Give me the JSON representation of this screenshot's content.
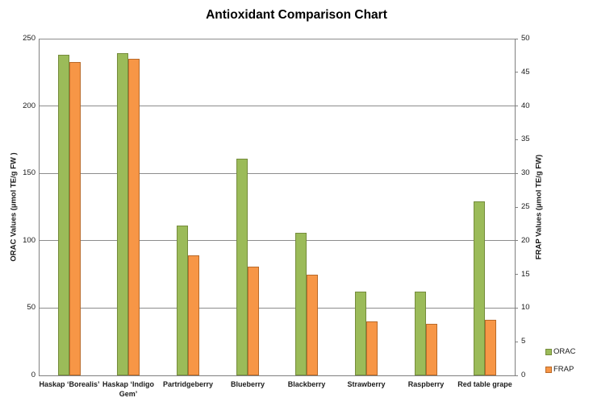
{
  "chart_data": {
    "type": "bar",
    "title": "Antioxidant Comparison Chart",
    "axes": {
      "left": {
        "label": "ORAC Values (µmol TE/g FW )",
        "min": 0,
        "max": 250,
        "tick_step": 50,
        "ticks": [
          250,
          200,
          150,
          100,
          50,
          0
        ]
      },
      "right": {
        "label": "FRAP Values (µmol TE/g FW)",
        "min": 0,
        "max": 50,
        "tick_step": 5,
        "ticks": [
          50,
          45,
          40,
          35,
          30,
          25,
          20,
          15,
          10,
          5,
          0
        ]
      }
    },
    "categories": [
      "Haskap ‘Borealis’",
      "Haskap ‘Indigo Gem’",
      "Partridgeberry",
      "Blueberry",
      "Blackberry",
      "Strawberry",
      "Raspberry",
      "Red table grape"
    ],
    "series": [
      {
        "name": "ORAC",
        "axis": "left",
        "color": "#9BBB59",
        "border_color": "#758C3C",
        "values": [
          238,
          239,
          111,
          161,
          106,
          62,
          62,
          129
        ]
      },
      {
        "name": "FRAP",
        "axis": "right",
        "color": "#F79646",
        "border_color": "#B96A29",
        "values": [
          46.5,
          47,
          17.8,
          16.2,
          15,
          8,
          7.6,
          8.2
        ]
      }
    ],
    "grid": true,
    "gridline_values_left": [
      50,
      100,
      150,
      200,
      250
    ],
    "legend": {
      "position": "right-bottom",
      "entries": [
        "ORAC",
        "FRAP"
      ]
    }
  },
  "colors": {
    "background": "#FFFFFF",
    "gridline": "#8C8C8C",
    "axis_line": "#808080",
    "text": "#1A1A1A"
  }
}
